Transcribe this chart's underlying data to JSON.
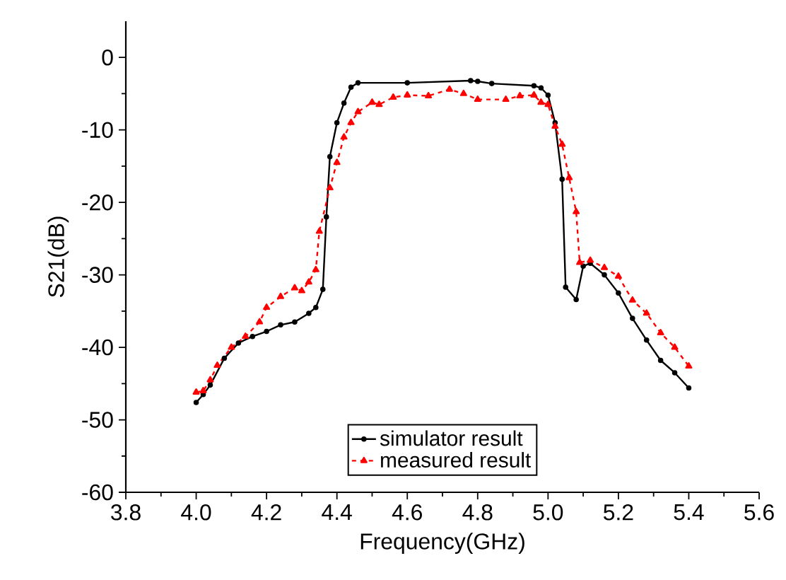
{
  "chart_data": {
    "type": "line",
    "xlabel": "Frequency(GHz)",
    "ylabel": "S21(dB)",
    "xlim": [
      3.8,
      5.6
    ],
    "xticks": [
      {
        "value": 3.8,
        "label": "3.8"
      },
      {
        "value": 4.0,
        "label": "4.0"
      },
      {
        "value": 4.2,
        "label": "4.2"
      },
      {
        "value": 4.4,
        "label": "4.4"
      },
      {
        "value": 4.6,
        "label": "4.6"
      },
      {
        "value": 4.8,
        "label": "4.8"
      },
      {
        "value": 5.0,
        "label": "5.0"
      },
      {
        "value": 5.2,
        "label": "5.2"
      },
      {
        "value": 5.4,
        "label": "5.4"
      },
      {
        "value": 5.6,
        "label": "5.6"
      }
    ],
    "ylim": [
      -60,
      5
    ],
    "yticks": [
      -60,
      -50,
      -40,
      -30,
      -20,
      -10,
      0
    ],
    "legend": "bottom",
    "grid": false,
    "series": [
      {
        "name": "simulator result",
        "color": "#000000",
        "marker": "circle",
        "line_style": "solid",
        "x": [
          4.0,
          4.02,
          4.04,
          4.08,
          4.12,
          4.16,
          4.2,
          4.24,
          4.28,
          4.32,
          4.34,
          4.36,
          4.37,
          4.38,
          4.4,
          4.42,
          4.44,
          4.46,
          4.6,
          4.78,
          4.8,
          4.84,
          4.96,
          4.98,
          5.0,
          5.02,
          5.04,
          5.05,
          5.08,
          5.1,
          5.12,
          5.16,
          5.2,
          5.24,
          5.28,
          5.32,
          5.36,
          5.4
        ],
        "values": [
          -47.6,
          -46.5,
          -45.2,
          -41.5,
          -39.4,
          -38.5,
          -37.8,
          -36.9,
          -36.5,
          -35.3,
          -34.5,
          -32.0,
          -22.0,
          -13.7,
          -9.0,
          -6.3,
          -4.1,
          -3.5,
          -3.5,
          -3.2,
          -3.3,
          -3.6,
          -3.9,
          -4.2,
          -5.2,
          -9.0,
          -16.8,
          -31.7,
          -33.4,
          -28.8,
          -28.4,
          -30.0,
          -32.5,
          -36.0,
          -39.0,
          -41.8,
          -43.5,
          -45.6
        ]
      },
      {
        "name": "measured result",
        "color": "#ff0000",
        "marker": "triangle",
        "line_style": "dashed",
        "x": [
          4.0,
          4.02,
          4.04,
          4.06,
          4.1,
          4.14,
          4.18,
          4.2,
          4.24,
          4.28,
          4.3,
          4.32,
          4.34,
          4.35,
          4.38,
          4.4,
          4.42,
          4.44,
          4.46,
          4.5,
          4.52,
          4.56,
          4.6,
          4.66,
          4.72,
          4.76,
          4.8,
          4.88,
          4.92,
          4.96,
          4.98,
          5.0,
          5.02,
          5.04,
          5.06,
          5.08,
          5.09,
          5.12,
          5.16,
          5.2,
          5.24,
          5.28,
          5.32,
          5.36,
          5.4
        ],
        "values": [
          -46.2,
          -46.0,
          -44.5,
          -42.5,
          -40.0,
          -38.5,
          -36.5,
          -34.5,
          -33.0,
          -31.8,
          -32.2,
          -31.0,
          -29.3,
          -24.0,
          -18.0,
          -14.5,
          -11.0,
          -9.0,
          -7.5,
          -6.2,
          -6.5,
          -5.5,
          -5.2,
          -5.3,
          -4.4,
          -5.0,
          -5.8,
          -5.8,
          -5.3,
          -5.2,
          -6.2,
          -6.5,
          -9.5,
          -12.0,
          -16.6,
          -21.3,
          -28.3,
          -28.0,
          -29.0,
          -30.2,
          -33.5,
          -35.3,
          -38.0,
          -40.0,
          -42.6
        ]
      }
    ]
  }
}
